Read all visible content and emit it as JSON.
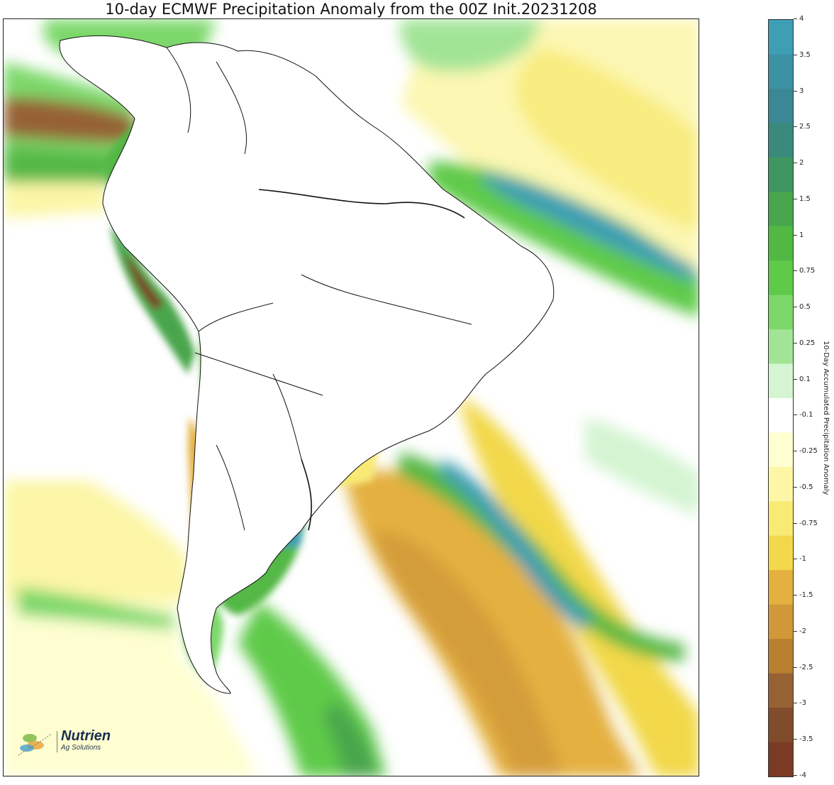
{
  "title": "10-day ECMWF Precipitation Anomaly from the 00Z Init.20231208",
  "colorbar": {
    "label": "10-Day Accumulated Precipitation Anomaly",
    "tick_labels": [
      "4",
      "3.5",
      "3",
      "2.5",
      "2",
      "1.5",
      "1",
      "0.75",
      "0.5",
      "0.25",
      "0.1",
      "-0.1",
      "-0.25",
      "-0.5",
      "-0.75",
      "-1",
      "-1.5",
      "-2",
      "-2.5",
      "-3",
      "-3.5",
      "-4"
    ],
    "colors": [
      "#3e9eb4",
      "#3c92a4",
      "#3a8896",
      "#3a8a7c",
      "#3e9660",
      "#48a64c",
      "#52b844",
      "#5fca4a",
      "#7cd86a",
      "#a2e496",
      "#d4f4d2",
      "#ffffff",
      "#fefed0",
      "#fcf6a6",
      "#f8ea74",
      "#f2d84a",
      "#e4b040",
      "#d09838",
      "#b8802e",
      "#966234",
      "#804c2c",
      "#7a3a26"
    ]
  },
  "logo": {
    "name": "Nutrien",
    "subtitle": "Ag Solutions"
  },
  "map": {
    "land_fill": "#ffffff",
    "border_color": "#111111"
  }
}
